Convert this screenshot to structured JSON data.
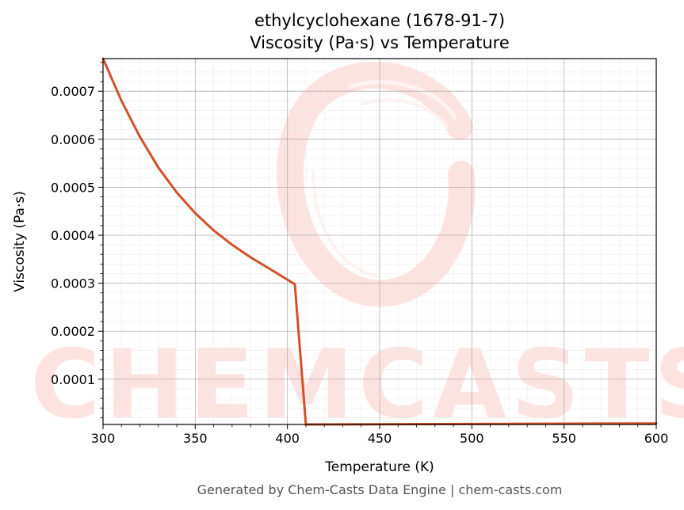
{
  "chart_data": {
    "type": "line",
    "title": "ethylcyclohexane (1678-91-7)",
    "subtitle": "Viscosity (Pa·s) vs Temperature",
    "xlabel": "Temperature (K)",
    "ylabel": "Viscosity (Pa·s)",
    "xlim": [
      300,
      600
    ],
    "ylim": [
      5.7e-06,
      0.000768
    ],
    "xticks": [
      300,
      350,
      400,
      450,
      500,
      550,
      600
    ],
    "yticks": [
      0.0001,
      0.0002,
      0.0003,
      0.0004,
      0.0005,
      0.0006,
      0.0007
    ],
    "ytick_labels": [
      "0.0001",
      "0.0002",
      "0.0003",
      "0.0004",
      "0.0005",
      "0.0006",
      "0.0007"
    ],
    "grid": true,
    "series": [
      {
        "color": "#d4502a",
        "x": [
          300,
          310,
          320,
          330,
          340,
          350,
          360,
          370,
          380,
          390,
          404,
          410,
          450,
          500,
          550,
          600
        ],
        "y": [
          0.000768,
          0.00068,
          0.000605,
          0.000541,
          0.000489,
          0.000446,
          0.00041,
          0.00038,
          0.000354,
          0.000331,
          0.000298,
          5.7e-06,
          6.2e-06,
          6.7e-06,
          7.3e-06,
          7.8e-06
        ]
      }
    ]
  },
  "watermark": {
    "text": "CHEMCASTS",
    "color": "#fde3df"
  },
  "footer": {
    "text": "Generated by Chem-Casts Data Engine | chem-casts.com"
  }
}
